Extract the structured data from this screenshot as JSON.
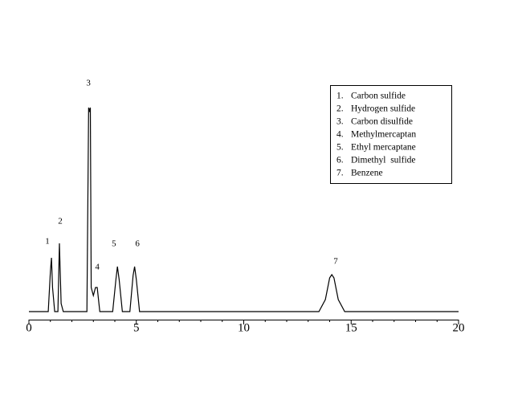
{
  "chart_data": {
    "type": "line",
    "x": [
      0,
      0.9,
      1.0,
      1.05,
      1.1,
      1.2,
      1.35,
      1.42,
      1.5,
      1.6,
      2.7,
      2.78,
      2.82,
      2.86,
      2.9,
      3.0,
      3.1,
      3.18,
      3.3,
      3.9,
      4.05,
      4.12,
      4.2,
      4.35,
      4.7,
      4.85,
      4.92,
      5.0,
      5.15,
      13.5,
      13.8,
      14.0,
      14.1,
      14.2,
      14.4,
      14.7,
      20
    ],
    "series": [
      {
        "color": "#000000",
        "values": [
          0,
          0,
          50,
          67,
          30,
          0,
          0,
          85,
          10,
          0,
          0,
          254,
          250,
          254,
          30,
          20,
          30,
          30,
          0,
          0,
          40,
          56,
          40,
          0,
          0,
          45,
          56,
          40,
          0,
          0,
          15,
          42,
          46,
          42,
          15,
          0,
          0
        ]
      }
    ],
    "xlim": [
      0,
      20
    ],
    "xticks": [
      0,
      5,
      10,
      15,
      20
    ],
    "xminorticks": [
      1,
      2,
      3,
      4,
      6,
      7,
      8,
      9,
      11,
      12,
      13,
      14,
      16,
      17,
      18,
      19
    ],
    "ylim": [
      -10,
      290
    ],
    "annotations": [
      {
        "text": "1",
        "x": 0.86,
        "y": 87
      },
      {
        "text": "2",
        "x": 1.46,
        "y": 112
      },
      {
        "text": "3",
        "x": 2.77,
        "y": 284
      },
      {
        "text": "4",
        "x": 3.18,
        "y": 55
      },
      {
        "text": "5",
        "x": 3.96,
        "y": 84
      },
      {
        "text": "6",
        "x": 5.05,
        "y": 84
      },
      {
        "text": "7",
        "x": 14.28,
        "y": 62
      }
    ],
    "legend": [
      {
        "number": "1.",
        "label": "Carbon sulfide"
      },
      {
        "number": "2.",
        "label": "Hydrogen sulfide"
      },
      {
        "number": "3.",
        "label": "Carbon disulfide"
      },
      {
        "number": "4.",
        "label": "Methylmercaptan"
      },
      {
        "number": "5.",
        "label": "Ethyl mercaptane"
      },
      {
        "number": "6.",
        "label": "Dimethyl  sulfide"
      },
      {
        "number": "7.",
        "label": "Benzene"
      }
    ]
  }
}
